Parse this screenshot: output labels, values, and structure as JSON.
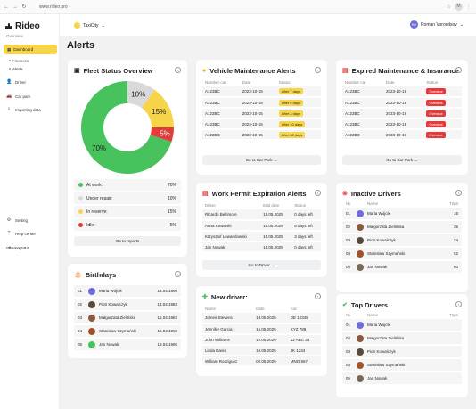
{
  "browser": {
    "url": "www.rideo.pro",
    "profile_initial": "M"
  },
  "app": {
    "brand": "Rideo",
    "section": "Overview",
    "version": "Version 0.2"
  },
  "nav": {
    "dashboard": "Dashboard",
    "subitems": [
      "Finances",
      "Alerts"
    ],
    "items": [
      "Driver",
      "Car park",
      "Importing data"
    ],
    "bottom": [
      "Setting",
      "Help center",
      "Log out"
    ]
  },
  "header": {
    "company": "TaxiCity",
    "user_name": "Roman Voronitsov",
    "user_initials": "RV"
  },
  "page_title": "Alerts",
  "fleet": {
    "title": "Fleet Status Overview",
    "legend": [
      {
        "label": "At work:",
        "value": "70%",
        "color": "#47c25d"
      },
      {
        "label": "Under repair:",
        "value": "10%",
        "color": "#d9d9d9"
      },
      {
        "label": "In reserve:",
        "value": "15%",
        "color": "#f7d54a"
      },
      {
        "label": "Idle:",
        "value": "5%",
        "color": "#e23b3b"
      }
    ],
    "button": "Go to reports"
  },
  "chart_data": {
    "type": "pie",
    "categories": [
      "At work",
      "Under repair",
      "In reserve",
      "Idle"
    ],
    "values": [
      70,
      10,
      15,
      5
    ],
    "labels": [
      "70%",
      "10%",
      "15%",
      "5%"
    ]
  },
  "vehicle": {
    "title": "Vehicle Maintenance Alerts",
    "headers": [
      "Number car",
      "Date",
      "Status"
    ],
    "rows": [
      [
        "A123BC",
        "2023-10-15",
        "After 7 days"
      ],
      [
        "A123BC",
        "2023-10-15",
        "After 5 days"
      ],
      [
        "A123BC",
        "2023-10-15",
        "After 3 days"
      ],
      [
        "A123BC",
        "2023-10-15",
        "After 10 days"
      ],
      [
        "A123BC",
        "2023-10-15",
        "After 35 days"
      ]
    ],
    "button": "Go to Car Park"
  },
  "expired": {
    "title": "Expired Maintenance & Insurance",
    "headers": [
      "Number car",
      "Date",
      "Status"
    ],
    "rows": [
      [
        "A123BC",
        "2023-10-15",
        "Overdue"
      ],
      [
        "A123BC",
        "2023-10-15",
        "Overdue"
      ],
      [
        "A123BC",
        "2023-10-15",
        "Overdue"
      ],
      [
        "A123BC",
        "2023-10-15",
        "Overdue"
      ],
      [
        "A123BC",
        "2023-10-15",
        "Overdue"
      ]
    ],
    "button": "Go to Car Park"
  },
  "permit": {
    "title": "Work Permit Expiration Alerts",
    "headers": [
      "Driver",
      "End date",
      "Status"
    ],
    "rows": [
      [
        "Ricardo Beltimore",
        "15.05.2025",
        "0 days left"
      ],
      [
        "Anna Kowalski",
        "15.05.2025",
        "5 days left"
      ],
      [
        "Krzysztof Lewandowski",
        "15.05.2025",
        "3 days left"
      ],
      [
        "Jan Nowak",
        "15.05.2025",
        "0 days left"
      ]
    ],
    "button": "Go to Driver"
  },
  "inactive": {
    "title": "Inactive Drivers",
    "headers": [
      "№",
      "Name",
      "Trips"
    ],
    "rows": [
      [
        "01",
        "Maria Wójcik",
        "16",
        "#6f6cd8"
      ],
      [
        "02",
        "Małgorzata Zielińska",
        "35",
        "#8b5a3c"
      ],
      [
        "03",
        "Piotr Kowalczyk",
        "34",
        "#5a4a3a"
      ],
      [
        "04",
        "Stanisław Szymański",
        "52",
        "#a0522d"
      ],
      [
        "05",
        "Jan Nowak",
        "60",
        "#7a6a5a"
      ]
    ]
  },
  "birthdays": {
    "title": "Birthdays",
    "rows": [
      [
        "01",
        "Maria Wójcik",
        "13.04.1990",
        "#6f6cd8"
      ],
      [
        "02",
        "Piotr Kowalczyk",
        "13.04.1983",
        "#5a4a3a"
      ],
      [
        "03",
        "Małgorzata Zielińska",
        "15.04.1983",
        "#8b5a3c"
      ],
      [
        "04",
        "Stanisław Szymański",
        "15.04.1982",
        "#a0522d"
      ],
      [
        "05",
        "Jan Nowak",
        "19.04.1996",
        "#47c25d"
      ]
    ]
  },
  "newdriver": {
    "title": "New driver:",
    "headers": [
      "Name",
      "Date",
      "Car"
    ],
    "rows": [
      [
        "James Stevens",
        "13.05.2025",
        "DE 12345"
      ],
      [
        "Jennifer Garcia",
        "15.05.2025",
        "XYZ 789"
      ],
      [
        "John Williams",
        "12.05.2025",
        "12 ABC 34"
      ],
      [
        "Linda Davis",
        "10.05.2025",
        "JK 1234"
      ],
      [
        "William Rodriguez",
        "02.05.2025",
        "MNO 567"
      ]
    ]
  },
  "top": {
    "title": "Top Drivers",
    "headers": [
      "№",
      "Name",
      "Trips"
    ],
    "rows": [
      [
        "01",
        "Maria Wójcik",
        "",
        "#6f6cd8"
      ],
      [
        "02",
        "Małgorzata Zielińska",
        "",
        "#8b5a3c"
      ],
      [
        "03",
        "Piotr Kowalczyk",
        "",
        "#5a4a3a"
      ],
      [
        "04",
        "Stanisław Szymański",
        "",
        "#a0522d"
      ],
      [
        "05",
        "Jan Nowak",
        "",
        "#7a6a5a"
      ]
    ]
  }
}
